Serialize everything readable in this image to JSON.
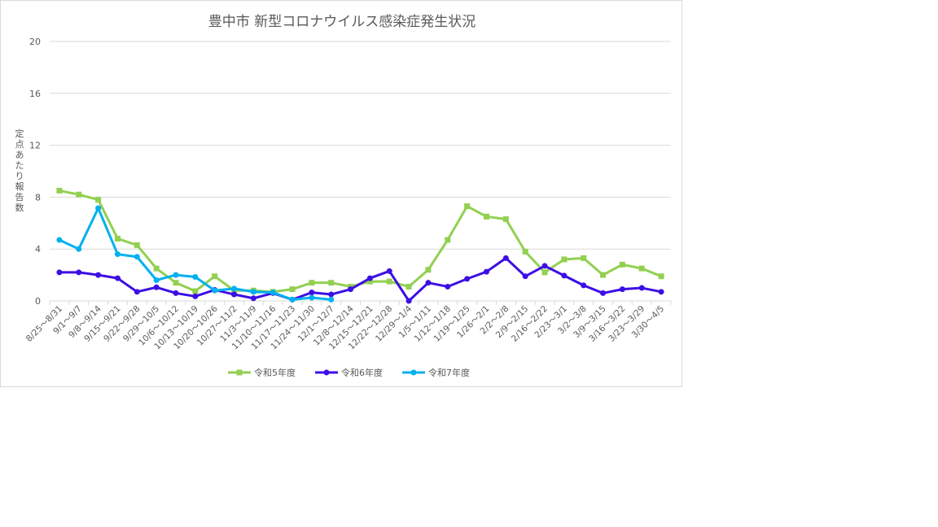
{
  "chart_data": {
    "type": "line",
    "title": "豊中市  新型コロナウイルス感染症発生状況",
    "xlabel": "",
    "ylabel": "定点あたり報告数",
    "ylim": [
      0,
      20
    ],
    "yticks": [
      0,
      4,
      8,
      12,
      16,
      20
    ],
    "grid": true,
    "legend_position": "bottom",
    "categories": [
      "8/25～8/31",
      "9/1～9/7",
      "9/8～9/14",
      "9/15～9/21",
      "9/22～9/28",
      "9/29～10/5",
      "10/6～10/12",
      "10/13～10/19",
      "10/20～10/26",
      "10/27～11/2",
      "11/3～11/9",
      "11/10～11/16",
      "11/17～11/23",
      "11/24～11/30",
      "12/1～12/7",
      "12/8～12/14",
      "12/15～12/21",
      "12/22～12/28",
      "12/29～1/4",
      "1/5～1/11",
      "1/12～1/18",
      "1/19～1/25",
      "1/26～2/1",
      "2/2～2/8",
      "2/9～2/15",
      "2/16～2/22",
      "2/23～3/1",
      "3/2～3/8",
      "3/9～3/15",
      "3/16～3/22",
      "3/23～3/29",
      "3/30～4/5"
    ],
    "series": [
      {
        "name": "令和5年度",
        "color": "#92d050",
        "marker": "square",
        "values": [
          8.5,
          8.2,
          7.8,
          4.8,
          4.3,
          2.5,
          1.4,
          0.75,
          1.9,
          0.8,
          0.8,
          0.7,
          0.9,
          1.4,
          1.4,
          1.1,
          1.5,
          1.5,
          1.1,
          2.4,
          4.7,
          7.3,
          6.5,
          6.3,
          3.8,
          2.2,
          3.2,
          3.3,
          2.0,
          2.8,
          2.5,
          1.9
        ]
      },
      {
        "name": "令和6年度",
        "color": "#3d0ee6",
        "marker": "circle",
        "values": [
          2.2,
          2.2,
          2.0,
          1.75,
          0.7,
          1.05,
          0.6,
          0.35,
          0.85,
          0.5,
          0.2,
          0.6,
          0.1,
          0.65,
          0.5,
          0.9,
          1.75,
          2.3,
          0.0,
          1.4,
          1.1,
          1.7,
          2.25,
          3.3,
          1.9,
          2.7,
          1.95,
          1.2,
          0.6,
          0.9,
          1.0,
          0.7
        ]
      },
      {
        "name": "令和7年度",
        "color": "#00b0f0",
        "marker": "circle",
        "values": [
          4.7,
          4.0,
          7.15,
          3.6,
          3.4,
          1.6,
          2.0,
          1.85,
          0.8,
          0.95,
          0.7,
          0.65,
          0.1,
          0.25,
          0.1
        ]
      }
    ]
  }
}
